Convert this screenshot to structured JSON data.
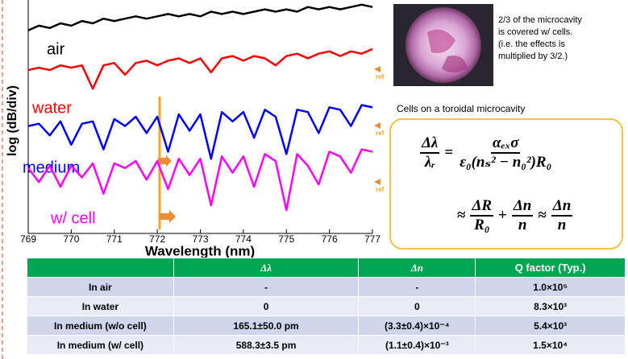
{
  "chart_data": {
    "type": "line",
    "x_label": "Wavelength (nm)",
    "y_label": "log (dB/div)",
    "x": [
      769,
      769.25,
      769.5,
      769.75,
      770,
      770.25,
      770.5,
      770.75,
      771,
      771.25,
      771.5,
      771.75,
      772,
      772.25,
      772.5,
      772.75,
      773,
      773.25,
      773.5,
      773.75,
      774,
      774.25,
      774.5,
      774.75,
      775,
      775.25,
      775.5,
      775.75,
      776,
      776.25,
      776.5,
      776.75,
      777
    ],
    "xlim": [
      769,
      777
    ],
    "xticks": [
      769,
      770,
      771,
      772,
      773,
      774,
      775,
      776,
      777
    ],
    "ylim": [
      0,
      10
    ],
    "series": [
      {
        "name": "air",
        "color": "#000000",
        "values": [
          8.7,
          8.9,
          8.8,
          9.0,
          8.9,
          9.1,
          9.0,
          9.2,
          9.1,
          9.2,
          9.3,
          9.2,
          9.3,
          9.4,
          9.3,
          9.4,
          9.3,
          9.5,
          9.4,
          9.5,
          9.4,
          9.5,
          9.6,
          9.5,
          9.6,
          9.5,
          9.7,
          9.6,
          9.7,
          9.6,
          9.7,
          9.8,
          9.7
        ]
      },
      {
        "name": "water",
        "color": "#ff0000",
        "values": [
          7.0,
          7.1,
          7.0,
          7.2,
          7.1,
          7.2,
          6.2,
          7.2,
          7.3,
          6.8,
          7.3,
          7.4,
          7.2,
          7.4,
          7.5,
          7.3,
          7.5,
          6.9,
          7.5,
          7.6,
          7.4,
          7.6,
          7.5,
          7.2,
          7.6,
          7.7,
          7.5,
          7.7,
          7.8,
          7.6,
          7.8,
          7.7,
          7.9
        ]
      },
      {
        "name": "medium",
        "color": "#0000ff",
        "values": [
          4.6,
          4.7,
          4.2,
          4.8,
          3.8,
          4.7,
          4.8,
          3.6,
          4.9,
          4.6,
          5.0,
          4.3,
          5.0,
          3.5,
          5.1,
          4.4,
          5.1,
          3.2,
          5.2,
          4.8,
          5.2,
          4.1,
          5.3,
          5.0,
          3.4,
          5.3,
          5.2,
          4.3,
          5.4,
          5.3,
          4.6,
          5.5,
          5.4
        ]
      },
      {
        "name": "w/ cell",
        "color": "#ff00ff",
        "values": [
          2.8,
          2.2,
          2.9,
          2.0,
          2.9,
          2.4,
          3.0,
          1.7,
          3.0,
          2.8,
          3.1,
          2.3,
          3.1,
          1.9,
          3.2,
          2.5,
          3.2,
          1.2,
          3.3,
          2.6,
          3.3,
          2.0,
          3.4,
          3.1,
          1.0,
          3.4,
          2.9,
          2.1,
          3.5,
          3.3,
          2.6,
          3.6,
          3.5
        ]
      }
    ],
    "annotations": [
      "ref",
      "ref",
      "ref"
    ]
  },
  "photo_caption": [
    "2/3 of the microcavity",
    "is covered w/ cells.",
    "(i.e. the effects is",
    "multiplied by 3/2.)"
  ],
  "photo_title": "Cells on a toroidal microcavity",
  "equation": {
    "lhs_num": "Δλ",
    "lhs_den": "λᵣ",
    "eq": "=",
    "rhs_num": "αₑₓσ",
    "rhs_den": "ε₀(nₛ² − n₀²)R₀",
    "approx": "≈",
    "t1_num": "ΔR",
    "t1_den": "R₀",
    "plus": "+",
    "t2_num": "Δn",
    "t2_den": "n",
    "approx2": "≈",
    "t3_num": "Δn",
    "t3_den": "n"
  },
  "table": {
    "header": [
      "",
      "Δλ",
      "Δn",
      "Q factor (Typ.)"
    ],
    "rows": [
      [
        "In air",
        "-",
        "-",
        "1.0×10⁵"
      ],
      [
        "In water",
        "0",
        "0",
        "8.3×10³"
      ],
      [
        "In medium (w/o cell)",
        "165.1±50.0 pm",
        "(3.3±0.4)×10⁻⁴",
        "5.4×10³"
      ],
      [
        "In medium (w/ cell)",
        "588.3±3.5 pm",
        "(1.1±0.4)×10⁻³",
        "1.5×10⁴"
      ]
    ]
  }
}
